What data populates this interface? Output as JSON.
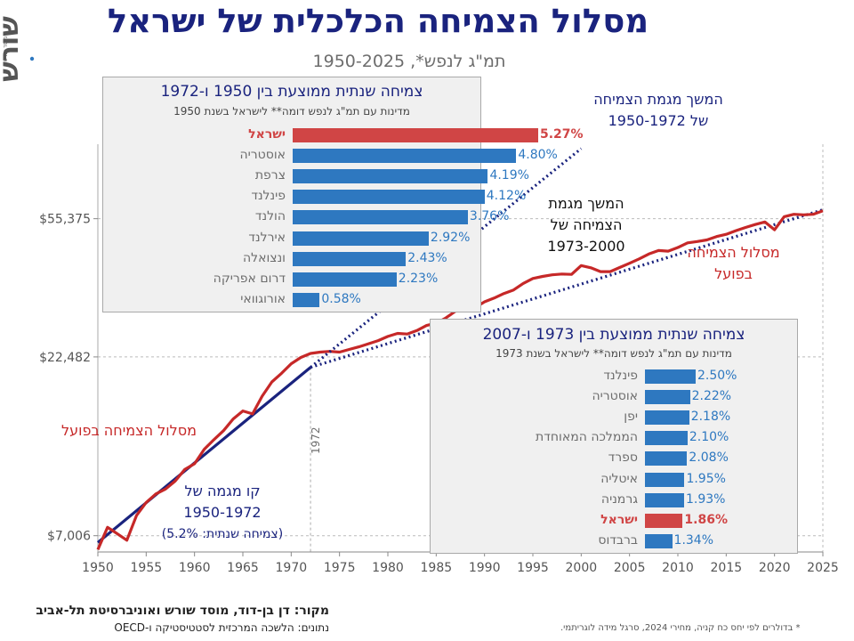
{
  "title": "מסלול הצמיחה הכלכלית של ישראל",
  "subtitle": "תמ\"ג לנפש*, 1950-2025",
  "logo": {
    "name": "shoresh",
    "text": "מוסד שורש",
    "subtext": "שורש"
  },
  "source": "מקור: דן בן-דוד, מוסד שורש ואוניברסיטת תל-אביב",
  "data_source": "נתונים: הלשכה המרכזית לסטטיסטיקה ו-OECD",
  "footnote": "* בדולרים לפי יחס כח קניה, מחירי 2024, סרגל מידה לוגריתמי.",
  "annotations": {
    "trend_continue_1950_1972": [
      "המשך מגמת הצמיחה",
      "של 1950-1972"
    ],
    "trend_continue_1973_2000": [
      "המשך מגמת",
      "הצמיחה של",
      "1973-2000"
    ],
    "actual_right": [
      "מסלול הצמיחה",
      "בפועל"
    ],
    "actual_left": "מסלול הצמיחה בפועל",
    "trend_line_label": [
      "קו מגמה של",
      "1950-1972",
      "(צמיחה שנתית: 5.2%)"
    ],
    "year_marker": "1972"
  },
  "colors": {
    "actual": "#c62828",
    "trend": "#1a237e",
    "bar": "#2e78c0",
    "israel_bar": "#d04545",
    "title": "#1a237e"
  },
  "chart_data": [
    {
      "type": "line",
      "title": "מסלול הצמיחה הכלכלית של ישראל",
      "subtitle": "תמ\"ג לנפש*, 1950-2025",
      "xlabel": "",
      "ylabel": "",
      "x_ticks": [
        1950,
        1955,
        1960,
        1965,
        1970,
        1975,
        1980,
        1985,
        1990,
        1995,
        2000,
        2005,
        2010,
        2015,
        2020,
        2025
      ],
      "y_ticks": [
        7006,
        22482,
        55375
      ],
      "y_tick_labels": [
        "$7,006",
        "$22,482",
        "$55,375"
      ],
      "y_scale": "log",
      "xlim": [
        1950,
        2025
      ],
      "ylim": [
        6300,
        90000
      ],
      "reference_year": 1972,
      "series": [
        {
          "name": "מסלול הצמיחה בפועל",
          "style": "solid",
          "x": [
            1950,
            1951,
            1952,
            1953,
            1954,
            1955,
            1956,
            1957,
            1958,
            1959,
            1960,
            1961,
            1962,
            1963,
            1964,
            1965,
            1966,
            1967,
            1968,
            1969,
            1970,
            1971,
            1972,
            1973,
            1974,
            1975,
            1976,
            1977,
            1978,
            1979,
            1980,
            1981,
            1982,
            1983,
            1984,
            1985,
            1986,
            1987,
            1988,
            1989,
            1990,
            1991,
            1992,
            1993,
            1994,
            1995,
            1996,
            1997,
            1998,
            1999,
            2000,
            2001,
            2002,
            2003,
            2004,
            2005,
            2006,
            2007,
            2008,
            2009,
            2010,
            2011,
            2012,
            2013,
            2014,
            2015,
            2016,
            2017,
            2018,
            2019,
            2020,
            2021,
            2022,
            2023,
            2024,
            2025
          ],
          "values": [
            6400,
            7400,
            7100,
            6800,
            8000,
            8700,
            9200,
            9500,
            10000,
            10800,
            11200,
            12300,
            13100,
            13900,
            15000,
            15800,
            15500,
            17400,
            19100,
            20200,
            21500,
            22400,
            23000,
            23200,
            23300,
            23200,
            23600,
            24000,
            24500,
            25000,
            25700,
            26200,
            26100,
            26700,
            27600,
            28000,
            29000,
            30300,
            30500,
            31000,
            32200,
            33000,
            34000,
            34800,
            36300,
            37500,
            38000,
            38400,
            38600,
            38500,
            40800,
            40200,
            39200,
            39200,
            40300,
            41400,
            42600,
            44000,
            45000,
            44800,
            45900,
            47300,
            47700,
            48200,
            49300,
            50000,
            51200,
            52300,
            53300,
            54200,
            51500,
            56100,
            57000,
            56800,
            57000,
            58300
          ]
        },
        {
          "name": "קו מגמה של 1950-1972",
          "style": "solid",
          "x": [
            1950,
            1972
          ],
          "values": [
            6700,
            21000
          ]
        },
        {
          "name": "המשך מגמת הצמיחה של 1950-1972",
          "style": "dotted",
          "x": [
            1972,
            2000
          ],
          "values": [
            21000,
            87500
          ]
        },
        {
          "name": "המשך מגמת הצמיחה של 1973-2000",
          "style": "dotted",
          "x": [
            1972,
            2025
          ],
          "values": [
            21000,
            58700
          ]
        }
      ]
    },
    {
      "type": "bar",
      "title": "צמיחה שנתית ממוצעת בין 1950 ו-1972",
      "subtitle": "מדינות עם תמ\"ג לנפש דומה** לישראל בשנת 1950",
      "categories": [
        "ישראל",
        "אוסטריה",
        "צרפת",
        "פינלנד",
        "הולנד",
        "אירלנד",
        "ונצואלה",
        "דרום אפריקה",
        "אורוגוואי"
      ],
      "values": [
        5.27,
        4.8,
        4.19,
        4.12,
        3.76,
        2.92,
        2.43,
        2.23,
        0.58
      ],
      "value_labels": [
        "5.27%",
        "4.80%",
        "4.19%",
        "4.12%",
        "3.76%",
        "2.92%",
        "2.43%",
        "2.23%",
        "0.58%"
      ],
      "highlight": "ישראל",
      "xlim": [
        0,
        5.27
      ]
    },
    {
      "type": "bar",
      "title": "צמיחה שנתית ממוצעת בין 1973 ו-2007",
      "subtitle": "מדינות עם תמ\"ג לנפש דומה** לישראל בשנת 1973",
      "categories": [
        "פינלנד",
        "אוסטריה",
        "יפן",
        "הממלכה המאוחדת",
        "ספרד",
        "איטליה",
        "גרמניה",
        "ישראל",
        "ברבדוס"
      ],
      "values": [
        2.5,
        2.22,
        2.18,
        2.1,
        2.08,
        1.95,
        1.93,
        1.86,
        1.34
      ],
      "value_labels": [
        "2.50%",
        "2.22%",
        "2.18%",
        "2.10%",
        "2.08%",
        "1.95%",
        "1.93%",
        "1.86%",
        "1.34%"
      ],
      "highlight": "ישראל",
      "xlim": [
        0,
        2.5
      ]
    }
  ]
}
